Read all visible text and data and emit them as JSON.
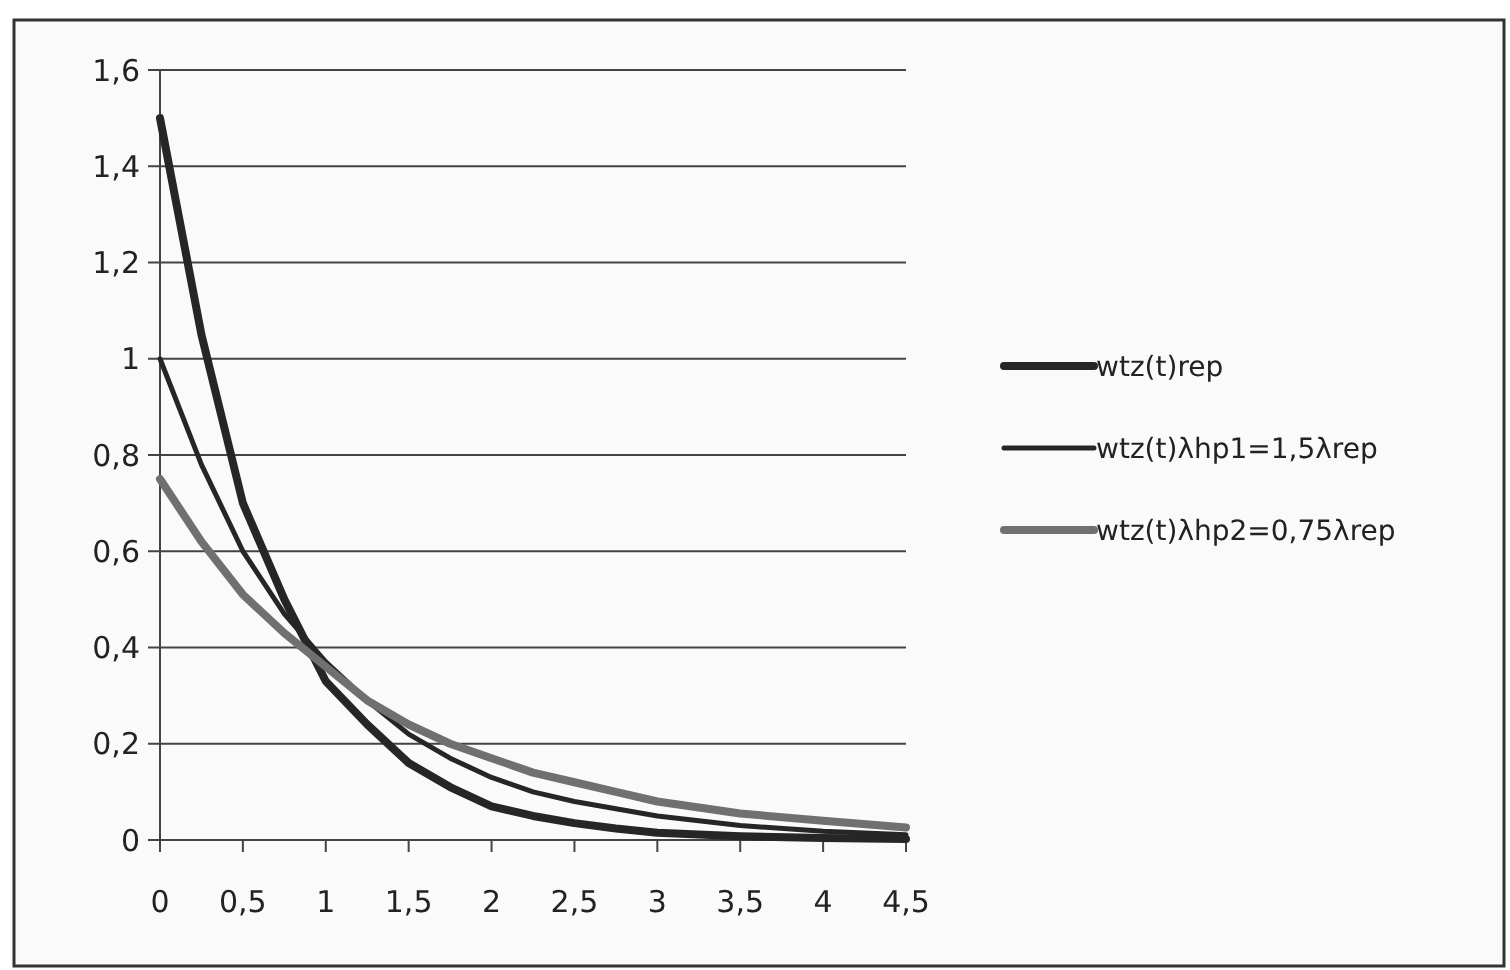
{
  "chart_data": {
    "type": "line",
    "xlim": [
      0,
      4.5
    ],
    "xticks": [
      {
        "value": 0,
        "label": "0"
      },
      {
        "value": 0.5,
        "label": "0,5"
      },
      {
        "value": 1,
        "label": "1"
      },
      {
        "value": 1.5,
        "label": "1,5"
      },
      {
        "value": 2,
        "label": "2"
      },
      {
        "value": 2.5,
        "label": "2,5"
      },
      {
        "value": 3,
        "label": "3"
      },
      {
        "value": 3.5,
        "label": "3,5"
      },
      {
        "value": 4,
        "label": "4"
      },
      {
        "value": 4.5,
        "label": "4,5"
      }
    ],
    "ylim": [
      0,
      1.6
    ],
    "yticks": [
      {
        "value": 0,
        "label": "0"
      },
      {
        "value": 0.2,
        "label": "0,2"
      },
      {
        "value": 0.4,
        "label": "0,4"
      },
      {
        "value": 0.6,
        "label": "0,6"
      },
      {
        "value": 0.8,
        "label": "0,8"
      },
      {
        "value": 1,
        "label": "1"
      },
      {
        "value": 1.2,
        "label": "1,2"
      },
      {
        "value": 1.4,
        "label": "1,4"
      },
      {
        "value": 1.6,
        "label": "1,6"
      }
    ],
    "grid": "y",
    "legend": "right",
    "marker": "none",
    "line_style": "solid",
    "x": [
      0,
      0.25,
      0.5,
      0.75,
      1,
      1.25,
      1.5,
      1.75,
      2,
      2.25,
      2.5,
      2.75,
      3,
      3.5,
      4,
      4.5
    ],
    "series": [
      {
        "name": "wtz(t)rep",
        "color": "#262626",
        "values": [
          1.5,
          1.05,
          0.7,
          0.5,
          0.33,
          0.24,
          0.16,
          0.11,
          0.07,
          0.05,
          0.035,
          0.024,
          0.015,
          0.008,
          0.004,
          0.002
        ]
      },
      {
        "name": "wtz(t)λhp1=1,5λrep",
        "color": "#262626",
        "values": [
          1,
          0.78,
          0.6,
          0.47,
          0.37,
          0.29,
          0.22,
          0.17,
          0.13,
          0.1,
          0.08,
          0.065,
          0.05,
          0.03,
          0.018,
          0.011
        ]
      },
      {
        "name": "wtz(t)λhp2=0,75λrep",
        "color": "#707070",
        "values": [
          0.75,
          0.62,
          0.51,
          0.43,
          0.36,
          0.29,
          0.24,
          0.2,
          0.17,
          0.14,
          0.12,
          0.1,
          0.08,
          0.055,
          0.04,
          0.026
        ]
      }
    ]
  }
}
